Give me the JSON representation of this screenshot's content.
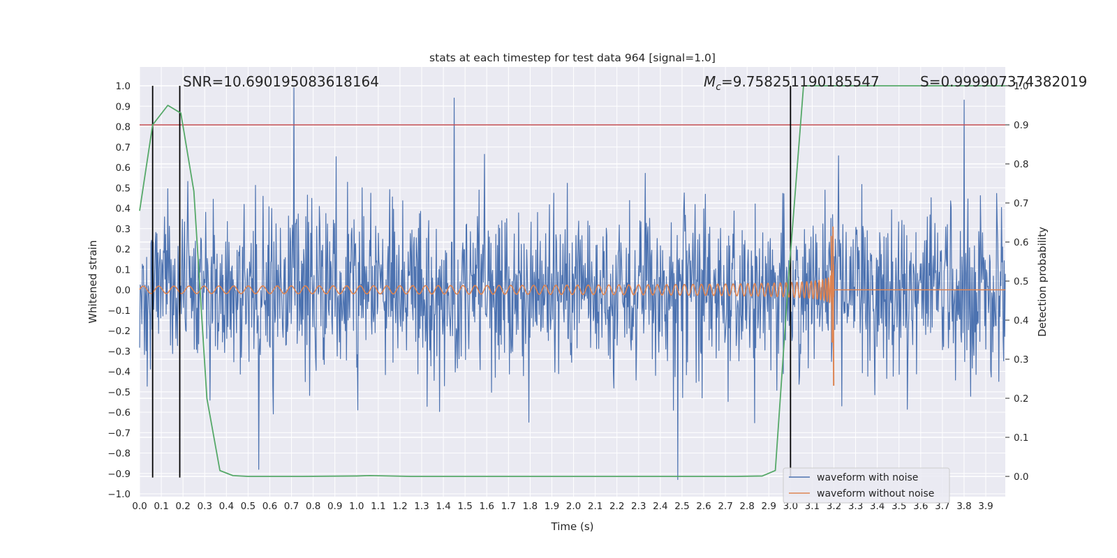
{
  "chart_data": {
    "type": "line",
    "title": "stats at each timestep for test data 964 [signal=1.0]",
    "xlabel": "Time (s)",
    "ylabel": "Whitened strain",
    "y2label": "Detection probability",
    "xlim": [
      0.0,
      3.99
    ],
    "ylim": [
      -1.0,
      1.0
    ],
    "y2lim": [
      -0.045,
      1.0
    ],
    "x_ticks": [
      0.0,
      0.1,
      0.2,
      0.3,
      0.4,
      0.5,
      0.6,
      0.7,
      0.8,
      0.9,
      1.0,
      1.1,
      1.2,
      1.3,
      1.4,
      1.5,
      1.6,
      1.7,
      1.8,
      1.9,
      2.0,
      2.1,
      2.2,
      2.3,
      2.4,
      2.5,
      2.6,
      2.7,
      2.8,
      2.9,
      3.0,
      3.1,
      3.2,
      3.3,
      3.4,
      3.5,
      3.6,
      3.7,
      3.8,
      3.9
    ],
    "x_tick_labels": [
      "0.0",
      "0.1",
      "0.2",
      "0.3",
      "0.4",
      "0.5",
      "0.6",
      "0.7",
      "0.8",
      "0.9",
      "1.0",
      "1.1",
      "1.2",
      "1.3",
      "1.4",
      "1.5",
      "1.6",
      "1.7",
      "1.8",
      "1.9",
      "2.0",
      "2.1",
      "2.2",
      "2.3",
      "2.4",
      "2.5",
      "2.6",
      "2.7",
      "2.8",
      "2.9",
      "3.0",
      "3.1",
      "3.2",
      "3.3",
      "3.4",
      "3.5",
      "3.6",
      "3.7",
      "3.8",
      "3.9"
    ],
    "y_ticks": [
      1.0,
      0.9,
      0.8,
      0.7,
      0.6,
      0.5,
      0.4,
      0.3,
      0.2,
      0.1,
      0.0,
      -0.1,
      -0.2,
      -0.3,
      -0.4,
      -0.5,
      -0.6,
      -0.7,
      -0.8,
      -0.9,
      -1.0
    ],
    "y_tick_labels": [
      "1.0",
      "0.9",
      "0.8",
      "0.7",
      "0.6",
      "0.5",
      "0.4",
      "0.3",
      "0.2",
      "0.1",
      "0.0",
      "−0.1",
      "−0.2",
      "−0.3",
      "−0.4",
      "−0.5",
      "−0.6",
      "−0.7",
      "−0.8",
      "−0.9",
      "−1.0"
    ],
    "y2_ticks": [
      1.0,
      0.9,
      0.8,
      0.7,
      0.6,
      0.5,
      0.4,
      0.3,
      0.2,
      0.1,
      0.0
    ],
    "y2_tick_labels": [
      "1.0",
      "0.9",
      "0.8",
      "0.7",
      "0.6",
      "0.5",
      "0.4",
      "0.3",
      "0.2",
      "0.1",
      "0.0"
    ],
    "annotations": {
      "snr": "SNR=10.690195083618164",
      "mc_symbol": "M",
      "mc_sub": "c",
      "mc_value": "=9.758251190185547",
      "s": "S=0.999907374382019"
    },
    "series": [
      {
        "name": "waveform with noise",
        "color": "#4c72b0",
        "kind": "noise",
        "duration": 3.99,
        "sample_count": 1600,
        "approx_std": 0.2,
        "notable_peaks": [
          {
            "x": 0.71,
            "y": 0.99
          },
          {
            "x": 1.45,
            "y": 0.94
          },
          {
            "x": 2.48,
            "y": -0.93
          },
          {
            "x": 0.55,
            "y": -0.88
          },
          {
            "x": 3.8,
            "y": 0.93
          }
        ]
      },
      {
        "name": "waveform without noise",
        "color": "#dd8452",
        "kind": "chirp",
        "merger_time": 3.2,
        "start_frequency_hz": 14,
        "start_amplitude": 0.018,
        "peak_max": 0.31,
        "peak_min": -0.47,
        "ringdown_end": 3.21
      },
      {
        "name": "detection probability",
        "axis": "right",
        "color": "#55a868",
        "x": [
          0.0,
          0.06,
          0.13,
          0.19,
          0.25,
          0.31,
          0.37,
          0.43,
          0.5,
          0.56,
          0.75,
          1.0,
          1.06,
          1.25,
          1.5,
          1.75,
          2.0,
          2.25,
          2.5,
          2.75,
          2.87,
          2.93,
          2.99,
          3.06,
          3.99
        ],
        "y": [
          0.68,
          0.9,
          0.95,
          0.93,
          0.73,
          0.2,
          0.015,
          0.002,
          0.0,
          0.0,
          0.0,
          0.001,
          0.002,
          0.0,
          0.0,
          0.0,
          0.0,
          0.0,
          0.0,
          0.0,
          0.001,
          0.015,
          0.5,
          1.0,
          1.0
        ]
      }
    ],
    "threshold": {
      "axis": "right",
      "value": 0.9,
      "color": "#c44e52"
    },
    "vertical_lines": [
      {
        "x": 0.06,
        "y_top": 1.0,
        "y_bottom": -0.92,
        "color": "#000000"
      },
      {
        "x": 0.185,
        "y_top": 1.0,
        "y_bottom": -0.92,
        "color": "#000000"
      },
      {
        "x": 3.0,
        "y_top": 1.0,
        "y_bottom": -0.92,
        "color": "#000000"
      }
    ],
    "legend": {
      "location": "lower-right",
      "entries": [
        {
          "label": "waveform with noise",
          "color": "#4c72b0"
        },
        {
          "label": "waveform without noise",
          "color": "#dd8452"
        }
      ]
    },
    "style": {
      "axes_bg": "#eaeaf2",
      "grid_color": "#ffffff",
      "grid": true
    }
  }
}
